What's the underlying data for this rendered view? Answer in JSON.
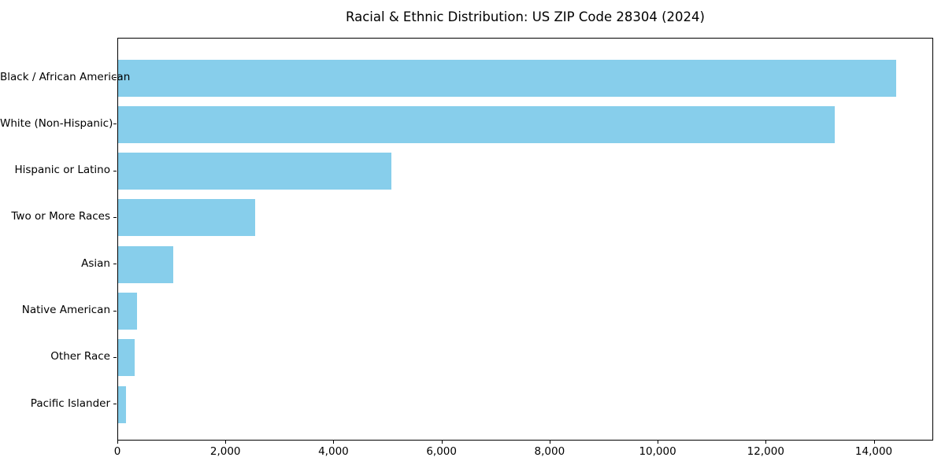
{
  "chart_data": {
    "type": "bar",
    "orientation": "horizontal",
    "title": "Racial & Ethnic Distribution: US ZIP Code 28304 (2024)",
    "xlabel": "",
    "ylabel": "",
    "categories": [
      "Black / African American",
      "White (Non-Hispanic)",
      "Hispanic or Latino",
      "Two or More Races",
      "Asian",
      "Native American",
      "Other Race",
      "Pacific Islander"
    ],
    "values": [
      14400,
      13270,
      5060,
      2540,
      1020,
      350,
      310,
      140
    ],
    "xlim": [
      0,
      15100
    ],
    "x_ticks": [
      0,
      2000,
      4000,
      6000,
      8000,
      10000,
      12000,
      14000
    ],
    "x_tick_labels": [
      "0",
      "2,000",
      "4,000",
      "6,000",
      "8,000",
      "10,000",
      "12,000",
      "14,000"
    ],
    "grid": false,
    "legend": "none",
    "bar_color": "#87CEEB",
    "background_color": "#FFFFFF",
    "axis_color": "#000000",
    "text_color": "#000000"
  }
}
